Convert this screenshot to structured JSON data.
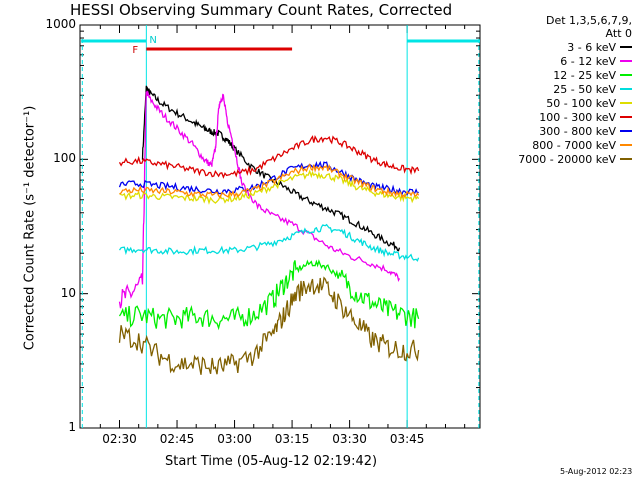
{
  "chart_data": {
    "type": "line",
    "title": "HESSI Observing Summary Count Rates, Corrected",
    "xlabel": "Start Time (05-Aug-12 02:19:42)",
    "ylabel": "Corrected Count Rate (s⁻¹ detector⁻¹)",
    "yscale": "log",
    "ylim": [
      1,
      1000
    ],
    "y_ticks": [
      "1",
      "10",
      "100",
      "1000"
    ],
    "x_ticks": [
      "02:30",
      "02:45",
      "03:00",
      "03:15",
      "03:30",
      "03:45"
    ],
    "x_tick_minutes": [
      30,
      45,
      60,
      75,
      90,
      105
    ],
    "xlim_minutes": [
      19.7,
      124
    ],
    "legend_header": [
      "Det 1,3,5,6,7,9,",
      "Att 0"
    ],
    "legend_position": "right",
    "grid": false,
    "flags": {
      "F": "F",
      "N": "N",
      "F_color": "#cc0000",
      "N_color": "#00cccc"
    },
    "flare_bar_minutes": [
      37,
      75
    ],
    "flare_bar_color": "#dd0000",
    "night_bar_color": "#00e5e5",
    "night_bars_minutes": [
      [
        20,
        37
      ],
      [
        105,
        124
      ]
    ],
    "series": [
      {
        "name": "3 - 6 keV",
        "color": "#000000",
        "x": [
          36,
          37,
          38,
          41,
          45,
          49,
          52,
          54,
          56,
          58,
          60,
          64,
          68,
          72,
          76,
          80,
          84,
          88,
          92,
          96,
          100,
          103
        ],
        "y": [
          105,
          340,
          310,
          260,
          220,
          190,
          170,
          160,
          155,
          140,
          120,
          90,
          75,
          65,
          55,
          48,
          43,
          38,
          33,
          28,
          24,
          22
        ]
      },
      {
        "name": "6 - 12 keV",
        "color": "#ee00ee",
        "x": [
          30,
          33,
          36,
          37,
          38,
          41,
          45,
          49,
          52,
          54,
          55,
          56,
          57,
          58,
          60,
          62,
          66,
          70,
          75,
          80,
          85,
          90,
          95,
          100,
          103
        ],
        "y": [
          9,
          10,
          12,
          320,
          280,
          220,
          170,
          130,
          100,
          90,
          120,
          260,
          300,
          200,
          120,
          65,
          45,
          38,
          33,
          27,
          22,
          19,
          17,
          15,
          13
        ]
      },
      {
        "name": "12 - 25 keV",
        "color": "#00ee00",
        "x": [
          30,
          35,
          40,
          45,
          50,
          55,
          60,
          65,
          70,
          73,
          76,
          80,
          84,
          88,
          92,
          96,
          100,
          104,
          108
        ],
        "y": [
          6.5,
          7,
          6.5,
          6.5,
          6.8,
          6.5,
          6.5,
          7,
          9,
          12,
          15,
          17,
          16,
          13,
          10,
          8.5,
          7.5,
          7,
          6.5
        ]
      },
      {
        "name": "25 - 50 keV",
        "color": "#00dddd",
        "x": [
          30,
          35,
          40,
          45,
          50,
          55,
          60,
          65,
          70,
          75,
          80,
          84,
          88,
          92,
          96,
          100,
          104,
          108
        ],
        "y": [
          21,
          21.5,
          21,
          20.5,
          21,
          21,
          21,
          22,
          24,
          27,
          30,
          31,
          29,
          25,
          22,
          20,
          19,
          18.5
        ]
      },
      {
        "name": "50 - 100 keV",
        "color": "#dddd00",
        "x": [
          30,
          35,
          40,
          45,
          50,
          55,
          60,
          65,
          70,
          75,
          80,
          84,
          88,
          92,
          96,
          100,
          104,
          108
        ],
        "y": [
          53,
          54,
          53,
          52,
          51,
          50,
          51,
          55,
          63,
          72,
          78,
          76,
          70,
          62,
          57,
          54,
          52,
          51
        ]
      },
      {
        "name": "100 - 300 keV",
        "color": "#dd0000",
        "x": [
          30,
          35,
          40,
          45,
          50,
          55,
          60,
          65,
          70,
          75,
          80,
          84,
          88,
          92,
          96,
          100,
          104,
          108
        ],
        "y": [
          95,
          97,
          93,
          88,
          82,
          78,
          78,
          83,
          100,
          120,
          140,
          145,
          132,
          115,
          100,
          90,
          85,
          82
        ]
      },
      {
        "name": "300 - 800 keV",
        "color": "#0000ee",
        "x": [
          30,
          35,
          40,
          45,
          50,
          55,
          60,
          65,
          70,
          75,
          80,
          84,
          88,
          92,
          96,
          100,
          104,
          108
        ],
        "y": [
          65,
          66,
          64,
          62,
          60,
          58,
          59,
          62,
          72,
          85,
          92,
          90,
          80,
          70,
          63,
          60,
          58,
          57
        ]
      },
      {
        "name": "800 - 7000 keV",
        "color": "#ff8800",
        "x": [
          30,
          35,
          40,
          45,
          50,
          55,
          60,
          65,
          70,
          75,
          80,
          84,
          88,
          92,
          96,
          100,
          104,
          108
        ],
        "y": [
          58,
          59,
          58,
          57,
          55,
          54,
          55,
          59,
          68,
          80,
          88,
          86,
          77,
          68,
          61,
          57,
          55,
          54
        ]
      },
      {
        "name": "7000 - 20000 keV",
        "color": "#806000",
        "x": [
          30,
          35,
          40,
          45,
          50,
          55,
          60,
          65,
          70,
          73,
          76,
          80,
          84,
          88,
          92,
          96,
          100,
          104,
          108
        ],
        "y": [
          5,
          4.5,
          3.5,
          3,
          3,
          2.8,
          3,
          3.5,
          5,
          7,
          10,
          12,
          11,
          8,
          6,
          4.5,
          4,
          3.8,
          3.8
        ]
      }
    ]
  },
  "timestamp": "5-Aug-2012 02:23"
}
